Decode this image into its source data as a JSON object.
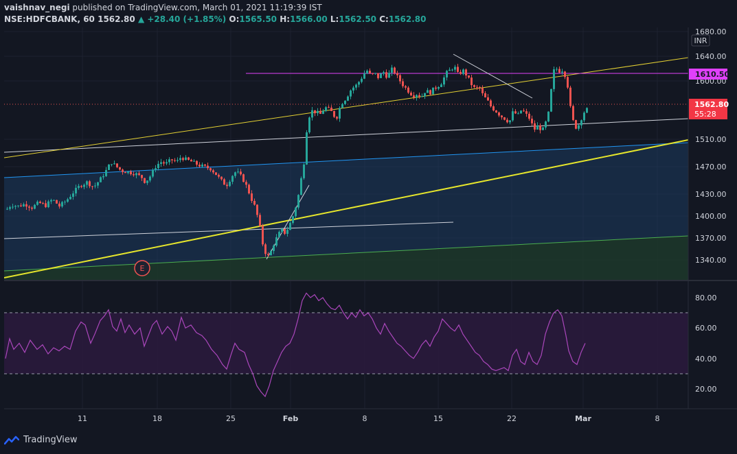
{
  "header": {
    "publisher": "vaishnav_negi",
    "published_text": "published on TradingView.com, March 01, 2021 11:19:39 IST",
    "symbol": "NSE:HDFCBANK, 60",
    "last": "1562.80",
    "change": "▲ +28.40 (+1.85%)",
    "o_label": "O:",
    "o": "1565.50",
    "h_label": "H:",
    "h": "1566.00",
    "l_label": "L:",
    "l": "1562.50",
    "c_label": "C:",
    "c": "1562.80"
  },
  "currency": "INR",
  "footer": {
    "brand": "TradingView"
  },
  "earnings_marker": "E",
  "price_badges": {
    "level": "1610.50",
    "last": "1562.80",
    "countdown": "55:28"
  },
  "colors": {
    "up": "#26a69a",
    "down": "#ef5350",
    "level_line": "#e040fb",
    "yellow": "#ffeb3b",
    "rsi": "#ab47bc",
    "channel_blue": "#2196f3",
    "channel_green": "#4caf50",
    "last_badge": "#f23645"
  },
  "chart_data": [
    {
      "type": "candlestick",
      "title": "HDFCBANK 60",
      "ylabel": "INR",
      "y_ticks": [
        "1680.00",
        "1640.00",
        "1600.00",
        "1510.00",
        "1470.00",
        "1430.00",
        "1400.00",
        "1370.00",
        "1340.00"
      ],
      "x_ticks": [
        "11",
        "18",
        "25",
        "Feb",
        "8",
        "15",
        "22",
        "Mar",
        "8"
      ],
      "ylim": [
        1305,
        1685
      ],
      "series": [
        {
          "name": "price_path",
          "values": [
            [
              0,
              1425
            ],
            [
              8,
              1415
            ],
            [
              15,
              1422
            ],
            [
              25,
              1420
            ],
            [
              35,
              1423
            ],
            [
              45,
              1418
            ],
            [
              55,
              1425
            ],
            [
              65,
              1421
            ],
            [
              75,
              1430
            ],
            [
              85,
              1420
            ],
            [
              95,
              1428
            ],
            [
              105,
              1440
            ],
            [
              115,
              1450
            ],
            [
              125,
              1455
            ],
            [
              135,
              1448
            ],
            [
              145,
              1460
            ],
            [
              155,
              1475
            ],
            [
              160,
              1485
            ],
            [
              168,
              1478
            ],
            [
              175,
              1472
            ],
            [
              185,
              1470
            ],
            [
              195,
              1468
            ],
            [
              205,
              1462
            ],
            [
              210,
              1455
            ],
            [
              218,
              1465
            ],
            [
              225,
              1478
            ],
            [
              232,
              1485
            ],
            [
              240,
              1482
            ],
            [
              248,
              1488
            ],
            [
              256,
              1485
            ],
            [
              262,
              1492
            ],
            [
              270,
              1488
            ],
            [
              278,
              1485
            ],
            [
              288,
              1480
            ],
            [
              295,
              1478
            ],
            [
              305,
              1475
            ],
            [
              312,
              1468
            ],
            [
              320,
              1458
            ],
            [
              328,
              1450
            ],
            [
              335,
              1462
            ],
            [
              340,
              1470
            ],
            [
              346,
              1468
            ],
            [
              352,
              1460
            ],
            [
              358,
              1448
            ],
            [
              364,
              1432
            ],
            [
              370,
              1418
            ],
            [
              376,
              1395
            ],
            [
              380,
              1368
            ],
            [
              385,
              1352
            ],
            [
              390,
              1345
            ],
            [
              396,
              1362
            ],
            [
              402,
              1375
            ],
            [
              408,
              1385
            ],
            [
              414,
              1380
            ],
            [
              420,
              1392
            ],
            [
              426,
              1408
            ],
            [
              432,
              1430
            ],
            [
              437,
              1460
            ],
            [
              442,
              1490
            ],
            [
              446,
              1545
            ],
            [
              452,
              1560
            ],
            [
              458,
              1558
            ],
            [
              465,
              1555
            ],
            [
              472,
              1565
            ],
            [
              480,
              1560
            ],
            [
              488,
              1548
            ],
            [
              495,
              1570
            ],
            [
              502,
              1578
            ],
            [
              510,
              1592
            ],
            [
              518,
              1598
            ],
            [
              526,
              1610
            ],
            [
              532,
              1620
            ],
            [
              538,
              1612
            ],
            [
              544,
              1615
            ],
            [
              550,
              1608
            ],
            [
              556,
              1618
            ],
            [
              562,
              1610
            ],
            [
              570,
              1622
            ],
            [
              578,
              1608
            ],
            [
              585,
              1598
            ],
            [
              592,
              1590
            ],
            [
              600,
              1582
            ],
            [
              606,
              1585
            ],
            [
              612,
              1580
            ],
            [
              618,
              1590
            ],
            [
              624,
              1586
            ],
            [
              630,
              1592
            ],
            [
              636,
              1596
            ],
            [
              642,
              1602
            ],
            [
              648,
              1615
            ],
            [
              654,
              1620
            ],
            [
              660,
              1625
            ],
            [
              666,
              1612
            ],
            [
              672,
              1620
            ],
            [
              678,
              1612
            ],
            [
              684,
              1600
            ],
            [
              690,
              1592
            ],
            [
              696,
              1595
            ],
            [
              702,
              1582
            ],
            [
              708,
              1575
            ],
            [
              714,
              1565
            ],
            [
              720,
              1560
            ],
            [
              728,
              1552
            ],
            [
              734,
              1548
            ],
            [
              740,
              1543
            ],
            [
              746,
              1560
            ],
            [
              752,
              1552
            ],
            [
              758,
              1562
            ],
            [
              764,
              1555
            ],
            [
              770,
              1548
            ],
            [
              776,
              1532
            ],
            [
              782,
              1538
            ],
            [
              788,
              1530
            ],
            [
              794,
              1545
            ],
            [
              798,
              1560
            ],
            [
              802,
              1600
            ],
            [
              806,
              1625
            ],
            [
              812,
              1618
            ],
            [
              818,
              1620
            ],
            [
              824,
              1605
            ],
            [
              828,
              1570
            ],
            [
              832,
              1548
            ],
            [
              836,
              1535
            ],
            [
              842,
              1540
            ],
            [
              846,
              1552
            ],
            [
              850,
              1560
            ],
            [
              855,
              1563
            ]
          ]
        },
        {
          "name": "level",
          "values": [
            1610.5
          ]
        }
      ],
      "legend": "none",
      "grid": true
    },
    {
      "type": "line",
      "title": "RSI",
      "y_ticks": [
        "80.00",
        "60.00",
        "40.00",
        "20.00"
      ],
      "ylim": [
        10,
        90
      ],
      "bands": [
        30,
        70
      ],
      "series": [
        {
          "name": "rsi",
          "values": [
            [
              8,
              40
            ],
            [
              14,
              53
            ],
            [
              20,
              46
            ],
            [
              28,
              50
            ],
            [
              36,
              44
            ],
            [
              44,
              52
            ],
            [
              54,
              46
            ],
            [
              62,
              49
            ],
            [
              70,
              43
            ],
            [
              78,
              47
            ],
            [
              86,
              45
            ],
            [
              94,
              48
            ],
            [
              102,
              46
            ],
            [
              110,
              58
            ],
            [
              118,
              64
            ],
            [
              124,
              62
            ],
            [
              132,
              50
            ],
            [
              138,
              56
            ],
            [
              146,
              65
            ],
            [
              152,
              68
            ],
            [
              158,
              72
            ],
            [
              164,
              61
            ],
            [
              170,
              58
            ],
            [
              176,
              66
            ],
            [
              182,
              57
            ],
            [
              188,
              62
            ],
            [
              196,
              56
            ],
            [
              204,
              60
            ],
            [
              210,
              48
            ],
            [
              216,
              55
            ],
            [
              222,
              62
            ],
            [
              228,
              65
            ],
            [
              236,
              56
            ],
            [
              244,
              61
            ],
            [
              250,
              58
            ],
            [
              256,
              52
            ],
            [
              264,
              67
            ],
            [
              270,
              60
            ],
            [
              278,
              62
            ],
            [
              286,
              57
            ],
            [
              294,
              55
            ],
            [
              300,
              52
            ],
            [
              308,
              46
            ],
            [
              316,
              42
            ],
            [
              324,
              36
            ],
            [
              330,
              33
            ],
            [
              336,
              42
            ],
            [
              342,
              50
            ],
            [
              348,
              46
            ],
            [
              356,
              44
            ],
            [
              362,
              36
            ],
            [
              368,
              30
            ],
            [
              374,
              22
            ],
            [
              380,
              18
            ],
            [
              386,
              15
            ],
            [
              392,
              22
            ],
            [
              398,
              32
            ],
            [
              404,
              38
            ],
            [
              410,
              44
            ],
            [
              416,
              48
            ],
            [
              422,
              50
            ],
            [
              428,
              56
            ],
            [
              434,
              66
            ],
            [
              440,
              78
            ],
            [
              446,
              83
            ],
            [
              452,
              80
            ],
            [
              458,
              82
            ],
            [
              464,
              78
            ],
            [
              470,
              80
            ],
            [
              476,
              76
            ],
            [
              482,
              73
            ],
            [
              488,
              72
            ],
            [
              494,
              75
            ],
            [
              500,
              70
            ],
            [
              506,
              66
            ],
            [
              512,
              70
            ],
            [
              518,
              67
            ],
            [
              524,
              72
            ],
            [
              530,
              68
            ],
            [
              536,
              70
            ],
            [
              542,
              66
            ],
            [
              548,
              60
            ],
            [
              554,
              56
            ],
            [
              560,
              63
            ],
            [
              566,
              58
            ],
            [
              572,
              54
            ],
            [
              578,
              50
            ],
            [
              584,
              48
            ],
            [
              590,
              45
            ],
            [
              596,
              42
            ],
            [
              602,
              40
            ],
            [
              608,
              44
            ],
            [
              614,
              49
            ],
            [
              620,
              52
            ],
            [
              626,
              48
            ],
            [
              632,
              54
            ],
            [
              638,
              58
            ],
            [
              644,
              66
            ],
            [
              650,
              63
            ],
            [
              656,
              60
            ],
            [
              662,
              58
            ],
            [
              668,
              62
            ],
            [
              674,
              56
            ],
            [
              680,
              52
            ],
            [
              686,
              48
            ],
            [
              692,
              44
            ],
            [
              698,
              42
            ],
            [
              704,
              38
            ],
            [
              710,
              36
            ],
            [
              716,
              33
            ],
            [
              722,
              32
            ],
            [
              728,
              33
            ],
            [
              734,
              34
            ],
            [
              740,
              32
            ],
            [
              746,
              42
            ],
            [
              752,
              46
            ],
            [
              758,
              38
            ],
            [
              764,
              36
            ],
            [
              770,
              44
            ],
            [
              776,
              38
            ],
            [
              782,
              36
            ],
            [
              788,
              42
            ],
            [
              794,
              56
            ],
            [
              800,
              64
            ],
            [
              806,
              70
            ],
            [
              812,
              72
            ],
            [
              818,
              68
            ],
            [
              824,
              55
            ],
            [
              828,
              45
            ],
            [
              834,
              38
            ],
            [
              840,
              36
            ],
            [
              846,
              44
            ],
            [
              852,
              50
            ]
          ]
        }
      ],
      "legend": "none",
      "grid": true
    }
  ]
}
